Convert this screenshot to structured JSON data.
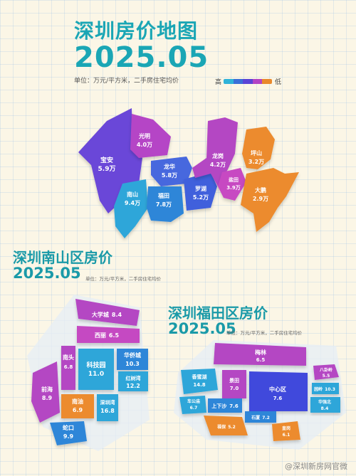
{
  "header": {
    "title": "深圳房价地图",
    "date": "2025.05",
    "unit": "单位：万元/平方米，二手房住宅均价",
    "legend_high": "高",
    "legend_low": "低",
    "legend_colors": [
      "#2fb3d9",
      "#3a6fd8",
      "#5a44d6",
      "#b244c4",
      "#e9892c"
    ]
  },
  "shenzhen_map": {
    "districts": [
      {
        "name": "宝安",
        "price": "5.9万"
      },
      {
        "name": "光明",
        "price": "4.0万"
      },
      {
        "name": "龙华",
        "price": "5.8万"
      },
      {
        "name": "南山",
        "price": "9.4万"
      },
      {
        "name": "福田",
        "price": "7.8万"
      },
      {
        "name": "罗湖",
        "price": "5.2万"
      },
      {
        "name": "龙岗",
        "price": "4.2万"
      },
      {
        "name": "盐田",
        "price": "3.9万"
      },
      {
        "name": "坪山",
        "price": "3.2万"
      },
      {
        "name": "大鹏",
        "price": "2.9万"
      }
    ]
  },
  "nanshan": {
    "title": "深圳南山区房价",
    "date": "2025.05",
    "unit": "单位：万元/平方米，二手房住宅均价",
    "areas": [
      {
        "name": "大学城",
        "price": "8.4"
      },
      {
        "name": "西丽",
        "price": "6.5"
      },
      {
        "name": "南头",
        "price": "6.8"
      },
      {
        "name": "科技园",
        "price": "11.0"
      },
      {
        "name": "华侨城",
        "price": "10.3"
      },
      {
        "name": "红树湾",
        "price": "12.2"
      },
      {
        "name": "前海",
        "price": "8.9"
      },
      {
        "name": "南油",
        "price": "6.9"
      },
      {
        "name": "深圳湾",
        "price": "16.8"
      },
      {
        "name": "蛇口",
        "price": "9.9"
      }
    ]
  },
  "futian": {
    "title": "深圳福田区房价",
    "date": "2025.05",
    "unit": "单位：万元/平方米，二手房住宅均价",
    "areas": [
      {
        "name": "梅林",
        "price": "6.5"
      },
      {
        "name": "八卦岭",
        "price": "5.5"
      },
      {
        "name": "香蜜湖",
        "price": "14.8"
      },
      {
        "name": "景田",
        "price": "7.0"
      },
      {
        "name": "中心区",
        "price": "7.6"
      },
      {
        "name": "园岭",
        "price": "10.3"
      },
      {
        "name": "车公庙",
        "price": "6.7"
      },
      {
        "name": "上下沙",
        "price": "7.6"
      },
      {
        "name": "石厦",
        "price": "7.2"
      },
      {
        "name": "华强北",
        "price": "8.4"
      },
      {
        "name": "福保",
        "price": "5.2"
      },
      {
        "name": "皇岗",
        "price": "6.1"
      }
    ]
  },
  "watermark": "@深圳新房网官微"
}
